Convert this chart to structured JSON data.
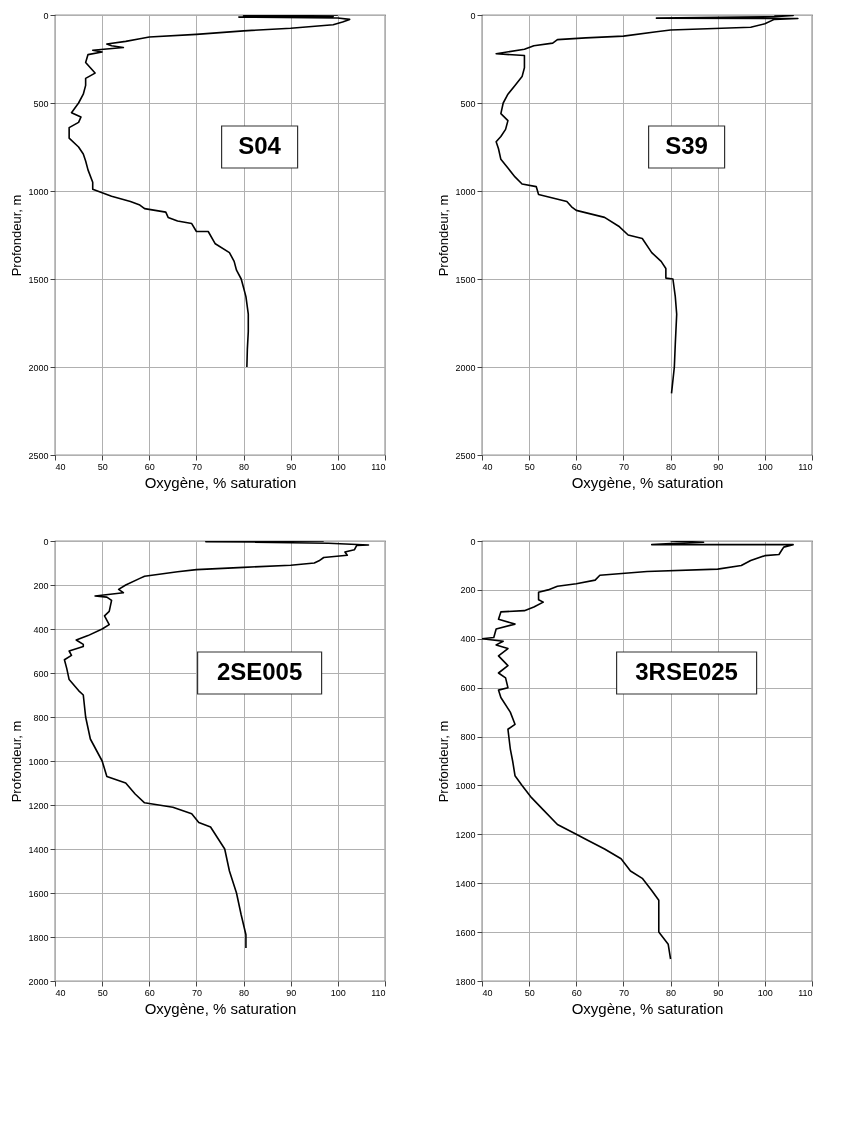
{
  "chart_data": [
    {
      "type": "line",
      "xlabel": "Oxygène, % saturation",
      "ylabel": "Profondeur, m",
      "annotations": [
        "S04"
      ],
      "xlim": [
        40,
        110
      ],
      "xticks": [
        40,
        50,
        60,
        70,
        80,
        90,
        100,
        110
      ],
      "ylim": [
        2500,
        0
      ],
      "yticks": [
        0,
        500,
        1000,
        1500,
        2000,
        2500
      ],
      "grid": true,
      "marker": "none",
      "line_style": "solid",
      "series": [
        {
          "color": "#000000",
          "x": [
            100,
            80,
            99,
            79,
            100,
            102.5,
            101,
            99,
            90,
            80,
            70,
            60,
            58,
            55,
            51,
            52,
            54.5,
            48,
            50,
            47,
            46.5,
            47.5,
            48.5,
            46.5,
            46.5,
            46,
            45,
            43.5,
            45.5,
            45,
            43,
            43,
            45,
            46,
            46.5,
            47,
            48,
            48,
            52,
            56,
            58,
            59,
            63.5,
            64,
            66,
            69,
            70,
            72.5,
            74,
            77,
            78,
            78.5,
            79.5,
            80,
            80.5,
            81,
            81,
            80.8,
            80.7
          ],
          "values": [
            0,
            5,
            8,
            12,
            17,
            25,
            40,
            55,
            75,
            90,
            110,
            125,
            135,
            150,
            165,
            175,
            185,
            200,
            210,
            225,
            270,
            300,
            330,
            360,
            400,
            450,
            500,
            555,
            580,
            610,
            640,
            700,
            750,
            790,
            830,
            880,
            950,
            990,
            1030,
            1060,
            1080,
            1100,
            1120,
            1150,
            1170,
            1185,
            1230,
            1230,
            1300,
            1350,
            1400,
            1450,
            1500,
            1550,
            1600,
            1700,
            1800,
            1900,
            2000
          ]
        }
      ]
    },
    {
      "type": "line",
      "xlabel": "Oxygène, % saturation",
      "ylabel": "Profondeur, m",
      "annotations": [
        "S39"
      ],
      "xlim": [
        40,
        110
      ],
      "xticks": [
        40,
        50,
        60,
        70,
        80,
        90,
        100,
        110
      ],
      "ylim": [
        2500,
        0
      ],
      "yticks": [
        0,
        500,
        1000,
        1500,
        2000,
        2500
      ],
      "grid": true,
      "marker": "none",
      "line_style": "solid",
      "series": [
        {
          "color": "#000000",
          "x": [
            102,
            106,
            102,
            77,
            107,
            102,
            100,
            97,
            80,
            77,
            70,
            62,
            56,
            55,
            51,
            49,
            43,
            49,
            49,
            48.5,
            47,
            45.5,
            44.5,
            44,
            45.5,
            45,
            44,
            43,
            43.5,
            44,
            45.5,
            47,
            48.5,
            51.5,
            52,
            58,
            59,
            60,
            66,
            69,
            71,
            74,
            76,
            78,
            79,
            79,
            80.5,
            81,
            81.3,
            81,
            80.8,
            80.2
          ],
          "values": [
            0,
            3,
            10,
            18,
            20,
            25,
            50,
            70,
            85,
            95,
            120,
            130,
            140,
            160,
            175,
            195,
            220,
            230,
            300,
            350,
            400,
            450,
            500,
            560,
            600,
            650,
            690,
            720,
            760,
            820,
            870,
            920,
            960,
            975,
            1020,
            1060,
            1090,
            1110,
            1150,
            1200,
            1250,
            1270,
            1350,
            1400,
            1440,
            1495,
            1500,
            1600,
            1700,
            1870,
            2000,
            2150
          ]
        }
      ]
    },
    {
      "type": "line",
      "xlabel": "Oxygène, % saturation",
      "ylabel": "Profondeur, m",
      "annotations": [
        "2SE005"
      ],
      "xlim": [
        40,
        110
      ],
      "xticks": [
        40,
        50,
        60,
        70,
        80,
        90,
        100,
        110
      ],
      "ylim": [
        2000,
        0
      ],
      "yticks": [
        0,
        200,
        400,
        600,
        800,
        1000,
        1200,
        1400,
        1600,
        1800,
        2000
      ],
      "grid": true,
      "marker": "none",
      "line_style": "solid",
      "series": [
        {
          "color": "#000000",
          "x": [
            97,
            72,
            98,
            106.5,
            104,
            103.5,
            101.5,
            102,
            97,
            96,
            95,
            90,
            80,
            70,
            66,
            59,
            58,
            55,
            53.5,
            54.5,
            48.5,
            51,
            52,
            51.5,
            50.5,
            51.5,
            50,
            47,
            44.5,
            46,
            46,
            43,
            43.5,
            42,
            42.5,
            43,
            45,
            46,
            46.5,
            47.5,
            50,
            51,
            55,
            57,
            59,
            65,
            69,
            70.5,
            73,
            74.5,
            76,
            77,
            78.5,
            79.5,
            80.5,
            80.5
          ],
          "values": [
            0,
            3,
            10,
            18,
            20,
            40,
            50,
            65,
            75,
            90,
            100,
            110,
            120,
            130,
            140,
            160,
            170,
            200,
            220,
            235,
            250,
            255,
            270,
            320,
            340,
            380,
            400,
            430,
            450,
            470,
            480,
            500,
            520,
            540,
            580,
            630,
            680,
            700,
            800,
            900,
            1000,
            1070,
            1100,
            1150,
            1190,
            1210,
            1240,
            1280,
            1300,
            1350,
            1400,
            1500,
            1600,
            1700,
            1790,
            1850
          ]
        }
      ]
    },
    {
      "type": "line",
      "xlabel": "Oxygène, % saturation",
      "ylabel": "Profondeur, m",
      "annotations": [
        "3RSE025"
      ],
      "xlim": [
        40,
        110
      ],
      "xticks": [
        40,
        50,
        60,
        70,
        80,
        90,
        100,
        110
      ],
      "ylim": [
        1800,
        0
      ],
      "yticks": [
        0,
        200,
        400,
        600,
        800,
        1000,
        1200,
        1400,
        1600,
        1800
      ],
      "grid": true,
      "marker": "none",
      "line_style": "solid",
      "series": [
        {
          "color": "#000000",
          "x": [
            80,
            87,
            80,
            76,
            106,
            104,
            103.5,
            103,
            100,
            97,
            95,
            90,
            75,
            65,
            64,
            60,
            56,
            54,
            52,
            52,
            53,
            51,
            49,
            44,
            43.5,
            47,
            43,
            42.5,
            40,
            44.5,
            43,
            45.5,
            43.5,
            45.5,
            43.5,
            45,
            45.5,
            43.5,
            44,
            46,
            47,
            45.5,
            46,
            46.5,
            47,
            48.5,
            50.5,
            53,
            56,
            60,
            62,
            66,
            69.5,
            71.5,
            74,
            76,
            77.5,
            77.5,
            79.5,
            80
          ],
          "values": [
            0,
            5,
            10,
            15,
            15,
            25,
            40,
            55,
            60,
            80,
            100,
            115,
            125,
            140,
            160,
            175,
            185,
            200,
            210,
            240,
            250,
            270,
            285,
            290,
            320,
            340,
            360,
            395,
            400,
            410,
            425,
            440,
            470,
            510,
            540,
            560,
            600,
            610,
            640,
            700,
            750,
            770,
            850,
            900,
            960,
            1000,
            1050,
            1100,
            1160,
            1200,
            1220,
            1260,
            1300,
            1350,
            1380,
            1430,
            1470,
            1600,
            1650,
            1710
          ]
        }
      ]
    }
  ]
}
